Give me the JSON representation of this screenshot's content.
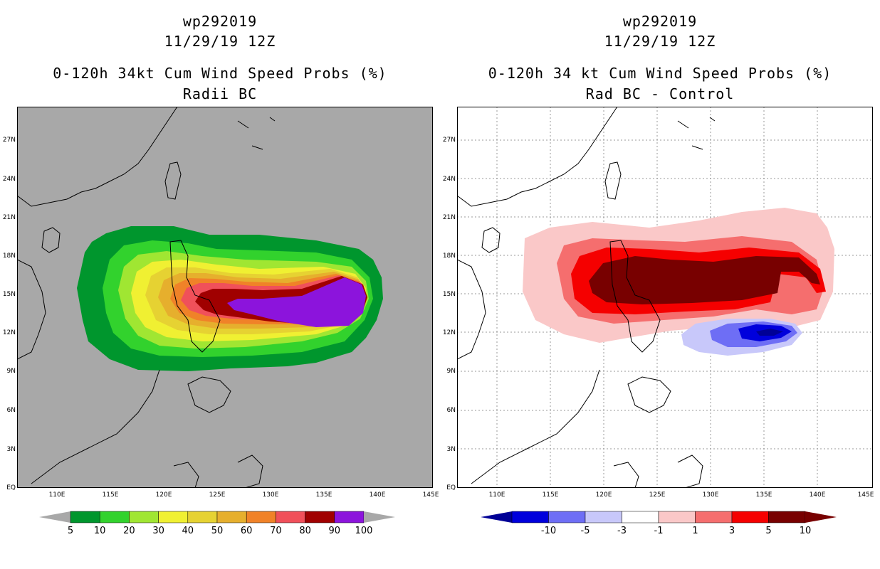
{
  "left_panel": {
    "title_line1": "wp292019",
    "title_line2": "11/29/19 12Z",
    "title_line3": "0-120h 34kt Cum Wind Speed Probs (%)",
    "title_line4": "Radii BC",
    "colorbar_labels": [
      "5",
      "10",
      "20",
      "30",
      "40",
      "50",
      "60",
      "70",
      "80",
      "90",
      "100"
    ],
    "colorbar_colors": [
      "#00962d",
      "#32d22d",
      "#a0e632",
      "#f0f032",
      "#e6d232",
      "#e6af2d",
      "#f08228",
      "#f0505a",
      "#a00000",
      "#8c14dc"
    ],
    "background_color": "#a8a8a8"
  },
  "right_panel": {
    "title_line1": "wp292019",
    "title_line2": "11/29/19 12Z",
    "title_line3": "0-120h 34 kt Cum Wind Speed Probs (%)",
    "title_line4": "Rad BC - Control",
    "colorbar_labels": [
      "-10",
      "-5",
      "-3",
      "-1",
      "1",
      "3",
      "5",
      "10"
    ],
    "colorbar_colors": [
      "#0000dc",
      "#6e6ef5",
      "#c8c8fa",
      "#ffffff",
      "#fac8c8",
      "#f56e6e",
      "#f50000",
      "#780000"
    ]
  },
  "lat_labels": [
    "27N",
    "24N",
    "21N",
    "18N",
    "15N",
    "12N",
    "9N",
    "6N",
    "3N",
    "EQ"
  ],
  "lon_labels": [
    "110E",
    "115E",
    "120E",
    "125E",
    "130E",
    "135E",
    "140E",
    "145E"
  ]
}
